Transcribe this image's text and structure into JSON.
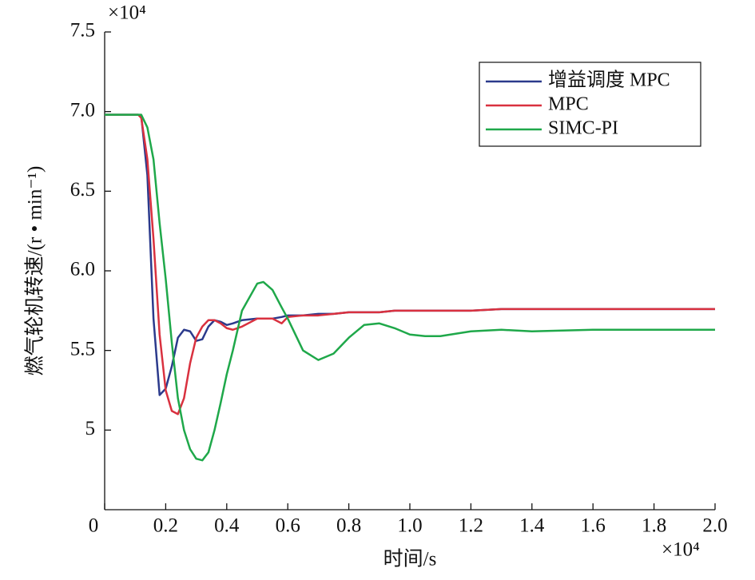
{
  "chart_data": {
    "type": "line",
    "y_label": "燃气轮机转速/(r • min⁻¹)",
    "x_label": "时间/s",
    "y_multiplier": "×10⁴",
    "x_multiplier": "×10⁴",
    "x": [
      0,
      0.05,
      0.1,
      0.11,
      0.12,
      0.14,
      0.16,
      0.18,
      0.2,
      0.22,
      0.24,
      0.26,
      0.28,
      0.3,
      0.32,
      0.34,
      0.36,
      0.38,
      0.4,
      0.42,
      0.45,
      0.5,
      0.52,
      0.55,
      0.58,
      0.6,
      0.65,
      0.7,
      0.75,
      0.8,
      0.85,
      0.9,
      0.95,
      1.0,
      1.05,
      1.1,
      1.2,
      1.3,
      1.4,
      1.6,
      1.8,
      2.0
    ],
    "series": [
      {
        "name": "增益调度 MPC",
        "color": "#2b3a8c",
        "values": [
          6.98,
          6.98,
          6.98,
          6.98,
          6.97,
          6.6,
          5.7,
          5.22,
          5.26,
          5.4,
          5.58,
          5.63,
          5.62,
          5.56,
          5.57,
          5.65,
          5.69,
          5.68,
          5.66,
          5.67,
          5.69,
          5.7,
          5.7,
          5.7,
          5.71,
          5.72,
          5.72,
          5.73,
          5.73,
          5.74,
          5.74,
          5.74,
          5.75,
          5.75,
          5.75,
          5.75,
          5.75,
          5.76,
          5.76,
          5.76,
          5.76,
          5.76
        ]
      },
      {
        "name": "MPC",
        "color": "#d9313f",
        "values": [
          6.98,
          6.98,
          6.98,
          6.98,
          6.96,
          6.7,
          6.2,
          5.6,
          5.25,
          5.12,
          5.1,
          5.2,
          5.42,
          5.58,
          5.65,
          5.69,
          5.69,
          5.67,
          5.64,
          5.63,
          5.65,
          5.7,
          5.7,
          5.7,
          5.67,
          5.71,
          5.72,
          5.72,
          5.73,
          5.74,
          5.74,
          5.74,
          5.75,
          5.75,
          5.75,
          5.75,
          5.75,
          5.76,
          5.76,
          5.76,
          5.76,
          5.76
        ]
      },
      {
        "name": "SIMC-PI",
        "color": "#1fa84a",
        "values": [
          6.98,
          6.98,
          6.98,
          6.98,
          6.98,
          6.9,
          6.7,
          6.3,
          5.95,
          5.55,
          5.2,
          5.0,
          4.88,
          4.82,
          4.81,
          4.86,
          5.0,
          5.17,
          5.35,
          5.5,
          5.75,
          5.92,
          5.93,
          5.88,
          5.77,
          5.7,
          5.5,
          5.44,
          5.48,
          5.58,
          5.66,
          5.67,
          5.64,
          5.6,
          5.59,
          5.59,
          5.62,
          5.63,
          5.62,
          5.63,
          5.63,
          5.63
        ]
      }
    ],
    "xlim": [
      0,
      2.0
    ],
    "xticks": [
      0,
      0.2,
      0.4,
      0.6,
      0.8,
      {
        "value": 1.0,
        "label": "1.0"
      },
      1.2,
      1.4,
      1.6,
      1.8,
      {
        "value": 2.0,
        "label": "2.0"
      }
    ],
    "ylim": [
      4.5,
      7.5
    ],
    "yticks": [
      5,
      5.5,
      {
        "value": 6.0,
        "label": "6.0"
      },
      6.5,
      {
        "value": 7.0,
        "label": "7.0"
      },
      7.5
    ],
    "grid": false,
    "legend": "upper right"
  }
}
